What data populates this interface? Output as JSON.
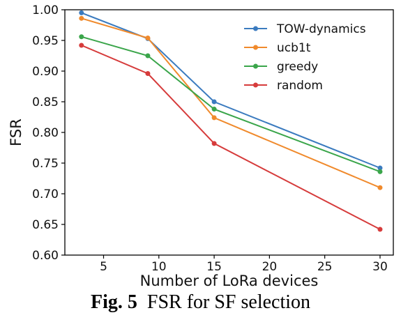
{
  "chart_data": {
    "type": "line",
    "xlabel": "Number of LoRa devices",
    "ylabel": "FSR",
    "xlim": [
      1.5,
      31.2
    ],
    "ylim": [
      0.6,
      1.0
    ],
    "xticks": [
      "5",
      "10",
      "15",
      "20",
      "25",
      "30"
    ],
    "xtick_values": [
      5,
      10,
      15,
      20,
      25,
      30
    ],
    "yticks": [
      "0.60",
      "0.65",
      "0.70",
      "0.75",
      "0.80",
      "0.85",
      "0.90",
      "0.95",
      "1.00"
    ],
    "ytick_values": [
      0.6,
      0.65,
      0.7,
      0.75,
      0.8,
      0.85,
      0.9,
      0.95,
      1.0
    ],
    "x": [
      3,
      9,
      15,
      30
    ],
    "grid": false,
    "legend_position": "top-right",
    "series": [
      {
        "name": "TOW-dynamics",
        "color": "#3b7bbf",
        "values": [
          0.995,
          0.953,
          0.85,
          0.742
        ]
      },
      {
        "name": "ucb1t",
        "color": "#f08a2c",
        "values": [
          0.986,
          0.954,
          0.824,
          0.71
        ]
      },
      {
        "name": "greedy",
        "color": "#3aa54a",
        "values": [
          0.956,
          0.925,
          0.838,
          0.736
        ]
      },
      {
        "name": "random",
        "color": "#d63b3b",
        "values": [
          0.942,
          0.896,
          0.782,
          0.642
        ]
      }
    ]
  },
  "caption": {
    "fig_label": "Fig. 5",
    "text": "FSR for SF selection"
  }
}
